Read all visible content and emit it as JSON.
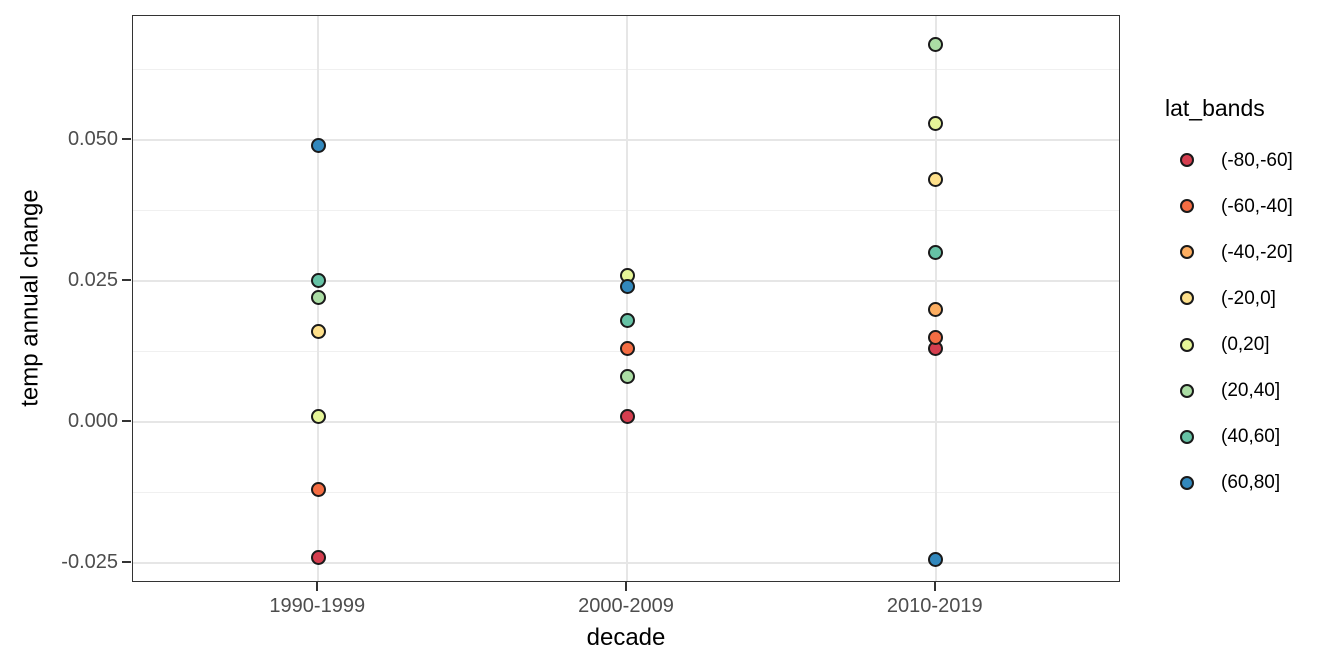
{
  "chart_data": {
    "type": "scatter",
    "title": "",
    "xlabel": "decade",
    "ylabel": "temp annual change",
    "legend_title": "lat_bands",
    "legend_position": "right",
    "grid": true,
    "categories": [
      "1990-1999",
      "2000-2009",
      "2010-2019"
    ],
    "ylim": [
      -0.0286,
      0.072
    ],
    "yticks": [
      {
        "value": 0.05,
        "label": "0.050"
      },
      {
        "value": 0.025,
        "label": "0.025"
      },
      {
        "value": 0.0,
        "label": "0.000"
      },
      {
        "value": -0.025,
        "label": "-0.025"
      }
    ],
    "minor_yticks": [
      0.0625,
      0.0375,
      0.0125,
      -0.0125
    ],
    "series": [
      {
        "name": "(-80,-60]",
        "color": "#D53E4F",
        "values": [
          -0.024,
          0.001,
          0.013
        ]
      },
      {
        "name": "(-60,-40]",
        "color": "#F46D43",
        "values": [
          -0.012,
          0.013,
          0.015
        ]
      },
      {
        "name": "(-40,-20]",
        "color": "#FDAE61",
        "values": [
          null,
          null,
          0.02
        ]
      },
      {
        "name": "(-20,0]",
        "color": "#FEE08B",
        "values": [
          0.016,
          null,
          0.043
        ]
      },
      {
        "name": "(0,20]",
        "color": "#E6F598",
        "values": [
          0.001,
          0.026,
          0.053
        ]
      },
      {
        "name": "(20,40]",
        "color": "#ABDDA4",
        "values": [
          0.022,
          0.008,
          0.067
        ]
      },
      {
        "name": "(40,60]",
        "color": "#66C2A5",
        "values": [
          0.025,
          0.018,
          0.03
        ]
      },
      {
        "name": "(60,80]",
        "color": "#3288BD",
        "values": [
          0.049,
          0.024,
          -0.0245
        ]
      }
    ]
  }
}
